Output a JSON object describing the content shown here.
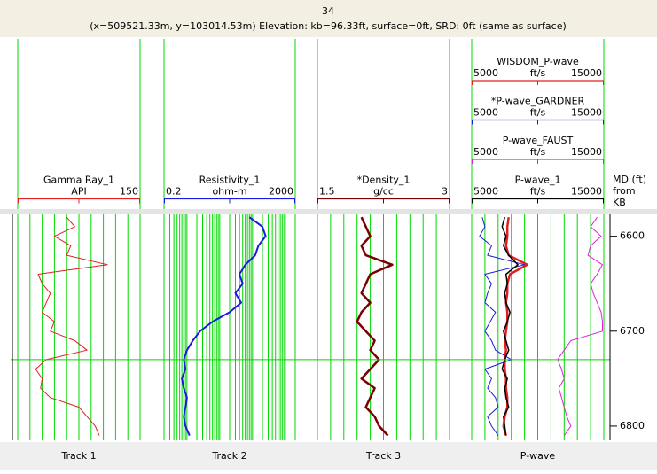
{
  "header": {
    "line1": "34",
    "line2": "(x=509521.33m, y=103014.53m) Elevation: kb=96.33ft, surface=0ft, SRD: 0ft (same as surface)"
  },
  "chart_data": {
    "type": "well-log",
    "depth_axis_label": [
      "MD (ft)",
      "from",
      "KB"
    ],
    "ylim": [
      6577,
      6815
    ],
    "yticks": [
      6600,
      6700,
      6800
    ],
    "marker_depth": 6730,
    "depth": [
      6580,
      6590,
      6600,
      6610,
      6620,
      6630,
      6640,
      6650,
      6660,
      6670,
      6680,
      6690,
      6700,
      6710,
      6720,
      6730,
      6740,
      6750,
      6760,
      6770,
      6780,
      6790,
      6800,
      6810
    ],
    "tracks": [
      {
        "tab": "Track 1",
        "xlim": [
          0,
          150
        ],
        "log": false,
        "min_label": false,
        "xticks": [
          0,
          15,
          30,
          45,
          60,
          75,
          90,
          105,
          120,
          135,
          150
        ],
        "curves": [
          {
            "name": "Gamma Ray_1",
            "unit": "API",
            "color": "#e02020",
            "width": 1,
            "values": [
              60,
              70,
              45,
              65,
              60,
              110,
              25,
              30,
              40,
              35,
              30,
              45,
              40,
              70,
              85,
              35,
              22,
              30,
              28,
              40,
              75,
              85,
              95,
              100
            ]
          }
        ]
      },
      {
        "tab": "Track 2",
        "xlim": [
          0.2,
          2000
        ],
        "log": true,
        "min_label": true,
        "xticks": [
          0.2,
          0.3,
          0.4,
          0.5,
          0.6,
          0.7,
          0.8,
          0.9,
          1,
          2,
          3,
          4,
          5,
          6,
          7,
          8,
          9,
          10,
          20,
          30,
          40,
          50,
          60,
          70,
          80,
          90,
          100,
          200,
          300,
          400,
          500,
          600,
          700,
          800,
          900,
          1000,
          2000
        ],
        "curves": [
          {
            "name": "Resistivity_1",
            "unit": "ohm-m",
            "color": "#1a1adc",
            "width": 2,
            "values": [
              80,
              200,
              250,
              150,
              120,
              60,
              40,
              50,
              30,
              45,
              20,
              6,
              2.5,
              1.5,
              1,
              0.8,
              0.9,
              0.7,
              0.8,
              1,
              0.9,
              0.8,
              0.9,
              1.2
            ]
          }
        ]
      },
      {
        "tab": "Track 3",
        "xlim": [
          1.5,
          3
        ],
        "log": false,
        "min_label": true,
        "xticks": [
          1.5,
          1.65,
          1.8,
          1.95,
          2.1,
          2.25,
          2.4,
          2.55,
          2.7,
          2.85,
          3
        ],
        "curves": [
          {
            "name": "*Density_1",
            "unit": "g/cc",
            "color": "#7a0000",
            "width": 2.5,
            "values": [
              2.0,
              2.05,
              2.1,
              2.0,
              2.05,
              2.35,
              2.1,
              2.05,
              2.0,
              2.1,
              2.0,
              1.95,
              2.05,
              2.15,
              2.1,
              2.2,
              2.1,
              2.0,
              2.15,
              2.1,
              2.05,
              2.15,
              2.2,
              2.3
            ]
          }
        ]
      },
      {
        "tab": "P-wave",
        "xlim": [
          5000,
          15000
        ],
        "log": false,
        "min_label": true,
        "xticks": [
          5000,
          6000,
          7000,
          8000,
          9000,
          10000,
          11000,
          12000,
          13000,
          14000,
          15000
        ],
        "curves": [
          {
            "name": "WISDOM_P-wave",
            "unit": "ft/s",
            "color": "#e02020",
            "width": 2.5,
            "values": [
              7800,
              7700,
              7700,
              7600,
              7800,
              9200,
              7900,
              7700,
              7700,
              7600,
              7700,
              7700,
              7600,
              7500,
              7600,
              7500,
              7500,
              7600,
              7600,
              7700,
              7700,
              7500,
              7400,
              7600
            ]
          },
          {
            "name": "*P-wave_GARDNER",
            "unit": "ft/s",
            "color": "#1a1adc",
            "width": 1,
            "values": [
              5800,
              6000,
              5600,
              6500,
              6200,
              9000,
              6000,
              6500,
              6200,
              6000,
              6800,
              6400,
              6000,
              6500,
              6800,
              8000,
              6000,
              6500,
              6200,
              6800,
              7000,
              6200,
              6500,
              7000
            ]
          },
          {
            "name": "P-wave_FAUST",
            "unit": "ft/s",
            "color": "#e020e0",
            "width": 1,
            "values": [
              14500,
              14000,
              14800,
              14000,
              13800,
              14900,
              14500,
              14000,
              14200,
              14500,
              14800,
              14900,
              14900,
              12500,
              12000,
              11500,
              11800,
              12000,
              11600,
              11800,
              12000,
              12200,
              12500,
              12000
            ]
          },
          {
            "name": "P-wave_1",
            "unit": "ft/s",
            "color": "#000000",
            "width": 1.5,
            "values": [
              7500,
              7300,
              7600,
              7400,
              7800,
              8500,
              7600,
              7700,
              7500,
              7600,
              7900,
              7700,
              7400,
              7600,
              7800,
              7500,
              7300,
              7700,
              7500,
              7600,
              7800,
              7400,
              7500,
              7600
            ]
          }
        ]
      }
    ]
  }
}
